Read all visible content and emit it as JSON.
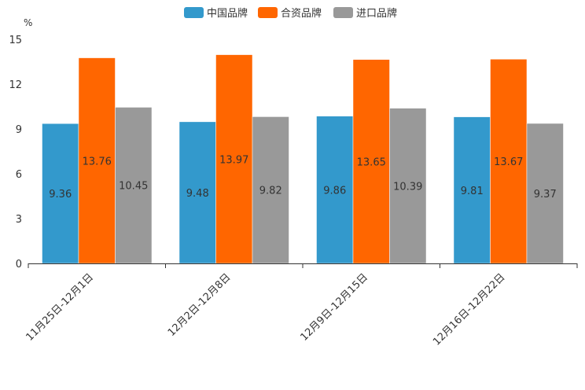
{
  "chart_data": {
    "type": "bar",
    "unit": "%",
    "categories": [
      "11月25日-12月1日",
      "12月2日-12月8日",
      "12月9日-12月15日",
      "12月16日-12月22日"
    ],
    "series": [
      {
        "name": "中国品牌",
        "color": "#3399cc",
        "values": [
          9.36,
          9.48,
          9.86,
          9.81
        ]
      },
      {
        "name": "合资品牌",
        "color": "#ff6600",
        "values": [
          13.76,
          13.97,
          13.65,
          13.67
        ]
      },
      {
        "name": "进口品牌",
        "color": "#999999",
        "values": [
          10.45,
          9.82,
          10.39,
          9.37
        ]
      }
    ],
    "ylim": [
      0,
      15
    ],
    "yticks": [
      0,
      3,
      6,
      9,
      12,
      15
    ],
    "legend_position": "top-center",
    "grid": false
  }
}
